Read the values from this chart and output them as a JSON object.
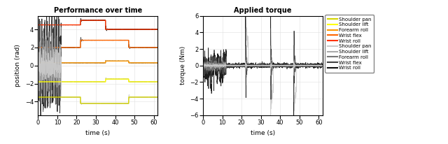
{
  "title_left": "Performance over time",
  "title_right": "Applied torque",
  "xlabel": "time (s)",
  "ylabel_left": "position (rad)",
  "ylabel_right": "torque (Nm)",
  "xlim": [
    0,
    62
  ],
  "ylim_left": [
    -5.5,
    5.5
  ],
  "ylim_right": [
    -6,
    6
  ],
  "xticks": [
    0,
    10,
    20,
    30,
    40,
    50,
    60
  ],
  "yticks_left": [
    -4,
    -2,
    0,
    2,
    4
  ],
  "yticks_right": [
    -6,
    -4,
    -2,
    0,
    2,
    4,
    6
  ],
  "legend_labels_col": [
    "Shoulder pan",
    "Shoulder lift",
    "Forearm roll",
    "Wrist flex",
    "Wrist roll"
  ],
  "legend_labels_gray": [
    "Shoulder pan",
    "Shoulder lift",
    "Forearm roll",
    "Wrist flex",
    "Wrist roll"
  ],
  "col_colors": [
    "#d4d400",
    "#ffff00",
    "#ff9900",
    "#ff6600",
    "#ff3300"
  ],
  "gray_colors": [
    "#cccccc",
    "#aaaaaa",
    "#777777",
    "#444444",
    "#111111"
  ],
  "babbling_end": 12.0
}
